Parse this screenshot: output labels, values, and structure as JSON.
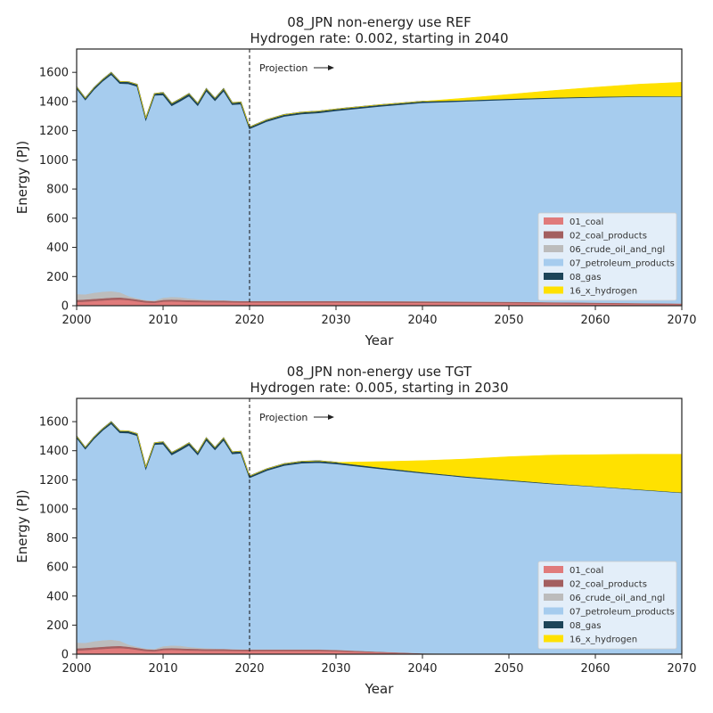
{
  "colors": {
    "01_coal": "#e07b7b",
    "02_coal_products": "#a35f60",
    "06_crude_oil_and_ngl": "#bcbcbc",
    "07_petroleum_products": "#a6ccee",
    "08_gas": "#1d4559",
    "16_x_hydrogen": "#ffe100",
    "projection_line": "#111111",
    "legend_bg": "#eaf2f9",
    "legend_border": "#cccccc"
  },
  "chart_data": [
    {
      "type": "area",
      "stacked": true,
      "title": "08_JPN non-energy use REF",
      "subtitle": "Hydrogen rate: 0.002, starting in 2040",
      "xlabel": "Year",
      "ylabel": "Energy (PJ)",
      "xlim": [
        2000,
        2070
      ],
      "ylim": [
        0,
        1760
      ],
      "xticks": [
        2000,
        2010,
        2020,
        2030,
        2040,
        2050,
        2060,
        2070
      ],
      "yticks": [
        0,
        200,
        400,
        600,
        800,
        1000,
        1200,
        1400,
        1600
      ],
      "grid": false,
      "legend_position": "bottom-right",
      "annotation": {
        "text": "Projection",
        "x": 2020
      },
      "x": [
        2000,
        2001,
        2002,
        2003,
        2004,
        2005,
        2006,
        2007,
        2008,
        2009,
        2010,
        2011,
        2012,
        2013,
        2014,
        2015,
        2016,
        2017,
        2018,
        2019,
        2020,
        2022,
        2024,
        2026,
        2028,
        2030,
        2035,
        2040,
        2045,
        2050,
        2055,
        2060,
        2065,
        2070
      ],
      "series": [
        {
          "name": "01_coal",
          "values": [
            25,
            28,
            32,
            36,
            40,
            42,
            38,
            30,
            22,
            20,
            28,
            30,
            28,
            26,
            25,
            24,
            24,
            24,
            23,
            22,
            22,
            22,
            22,
            22,
            22,
            22,
            21,
            20,
            19,
            18,
            16,
            14,
            12,
            10
          ]
        },
        {
          "name": "02_coal_products",
          "values": [
            15,
            15,
            15,
            15,
            15,
            15,
            13,
            13,
            12,
            11,
            12,
            12,
            12,
            12,
            12,
            11,
            11,
            11,
            10,
            10,
            10,
            10,
            10,
            10,
            10,
            10,
            10,
            10,
            9,
            9,
            8,
            7,
            6,
            5
          ]
        },
        {
          "name": "06_crude_oil_and_ngl",
          "values": [
            40,
            35,
            42,
            45,
            45,
            35,
            15,
            8,
            5,
            5,
            15,
            18,
            18,
            12,
            8,
            6,
            4,
            3,
            3,
            2,
            2,
            2,
            2,
            2,
            2,
            2,
            2,
            2,
            1,
            1,
            1,
            1,
            1,
            1
          ]
        },
        {
          "name": "07_petroleum_products",
          "values": [
            1410,
            1335,
            1395,
            1445,
            1487,
            1433,
            1457,
            1454,
            1238,
            1408,
            1392,
            1313,
            1347,
            1390,
            1329,
            1433,
            1369,
            1436,
            1344,
            1350,
            1181,
            1231,
            1266,
            1282,
            1290,
            1304,
            1335,
            1361,
            1374,
            1386,
            1398,
            1408,
            1416,
            1419
          ]
        },
        {
          "name": "08_gas",
          "values": [
            10,
            10,
            10,
            10,
            12,
            12,
            12,
            12,
            10,
            10,
            14,
            14,
            14,
            14,
            14,
            14,
            14,
            14,
            12,
            12,
            10,
            10,
            10,
            10,
            10,
            10,
            9,
            8,
            6,
            5,
            4,
            3,
            2,
            1
          ]
        },
        {
          "name": "16_x_hydrogen",
          "values": [
            0,
            0,
            0,
            0,
            0,
            0,
            0,
            0,
            0,
            0,
            0,
            0,
            0,
            0,
            0,
            0,
            0,
            0,
            0,
            0,
            0,
            0,
            0,
            0,
            0,
            0,
            0,
            0,
            15,
            30,
            48,
            65,
            82,
            96
          ]
        }
      ]
    },
    {
      "type": "area",
      "stacked": true,
      "title": "08_JPN non-energy use TGT",
      "subtitle": "Hydrogen rate: 0.005, starting in 2030",
      "xlabel": "Year",
      "ylabel": "Energy (PJ)",
      "xlim": [
        2000,
        2070
      ],
      "ylim": [
        0,
        1760
      ],
      "xticks": [
        2000,
        2010,
        2020,
        2030,
        2040,
        2050,
        2060,
        2070
      ],
      "yticks": [
        0,
        200,
        400,
        600,
        800,
        1000,
        1200,
        1400,
        1600
      ],
      "grid": false,
      "legend_position": "bottom-right",
      "annotation": {
        "text": "Projection",
        "x": 2020
      },
      "x": [
        2000,
        2001,
        2002,
        2003,
        2004,
        2005,
        2006,
        2007,
        2008,
        2009,
        2010,
        2011,
        2012,
        2013,
        2014,
        2015,
        2016,
        2017,
        2018,
        2019,
        2020,
        2022,
        2024,
        2026,
        2028,
        2030,
        2035,
        2040,
        2045,
        2050,
        2055,
        2060,
        2065,
        2070
      ],
      "series": [
        {
          "name": "01_coal",
          "values": [
            25,
            28,
            32,
            36,
            40,
            42,
            38,
            30,
            22,
            20,
            28,
            30,
            28,
            26,
            25,
            24,
            24,
            24,
            23,
            22,
            22,
            22,
            22,
            22,
            22,
            20,
            12,
            4,
            2,
            1,
            1,
            1,
            1,
            1
          ]
        },
        {
          "name": "02_coal_products",
          "values": [
            15,
            15,
            15,
            15,
            15,
            15,
            13,
            13,
            12,
            11,
            12,
            12,
            12,
            12,
            12,
            11,
            11,
            11,
            10,
            10,
            10,
            10,
            10,
            10,
            10,
            9,
            5,
            2,
            1,
            1,
            0,
            0,
            0,
            0
          ]
        },
        {
          "name": "06_crude_oil_and_ngl",
          "values": [
            40,
            35,
            42,
            45,
            45,
            35,
            15,
            8,
            5,
            5,
            15,
            18,
            18,
            12,
            8,
            6,
            4,
            3,
            3,
            2,
            2,
            2,
            2,
            2,
            2,
            2,
            1,
            1,
            1,
            1,
            0,
            0,
            0,
            0
          ]
        },
        {
          "name": "07_petroleum_products",
          "values": [
            1410,
            1335,
            1395,
            1445,
            1487,
            1433,
            1457,
            1454,
            1238,
            1408,
            1392,
            1313,
            1347,
            1390,
            1329,
            1433,
            1369,
            1436,
            1344,
            1350,
            1181,
            1231,
            1266,
            1282,
            1286,
            1280,
            1260,
            1240,
            1215,
            1193,
            1172,
            1153,
            1132,
            1111
          ]
        },
        {
          "name": "08_gas",
          "values": [
            10,
            10,
            10,
            10,
            12,
            12,
            12,
            12,
            10,
            10,
            14,
            14,
            14,
            14,
            14,
            14,
            14,
            14,
            12,
            12,
            10,
            10,
            10,
            10,
            10,
            9,
            7,
            5,
            4,
            3,
            2,
            1,
            1,
            1
          ]
        },
        {
          "name": "16_x_hydrogen",
          "values": [
            0,
            0,
            0,
            0,
            0,
            0,
            0,
            0,
            0,
            0,
            0,
            0,
            0,
            0,
            0,
            0,
            0,
            0,
            0,
            0,
            0,
            0,
            0,
            0,
            0,
            0,
            40,
            80,
            120,
            160,
            195,
            218,
            242,
            263
          ]
        }
      ]
    }
  ]
}
